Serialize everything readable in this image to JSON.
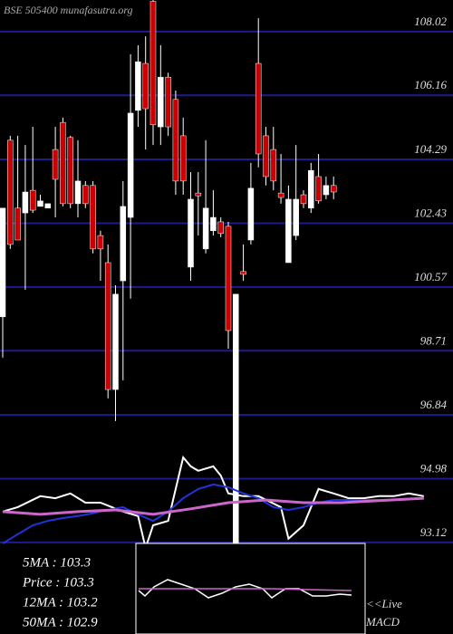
{
  "chart_data": {
    "type": "candlestick",
    "title": "BSE 505400 munafasutra.org",
    "ylim": [
      90.45,
      108.94
    ],
    "yticks": [
      108.02,
      106.16,
      104.29,
      102.43,
      100.57,
      98.71,
      96.84,
      94.98,
      93.12
    ],
    "grid": true,
    "up_color": "#ffffff",
    "down_color": "#cc0000",
    "grid_color": "#1c1c8c",
    "open": [
      99.7,
      104.85,
      102.87,
      102.73,
      103.39,
      102.92,
      102.87,
      104.58,
      105.37,
      104.93,
      103.0,
      103.53,
      103.53,
      102.07,
      101.28,
      97.58,
      100.75,
      102.6,
      105.72,
      107.09,
      108.9,
      105.24,
      106.69,
      106.04,
      104.98,
      101.15,
      103.31,
      101.68,
      102.21,
      102.47,
      102.34,
      93.09,
      101.02,
      101.94,
      107.09,
      104.98,
      104.58,
      103.31,
      101.28,
      102.07,
      103.26,
      102.87,
      103.79,
      103.26,
      103.53
    ],
    "high": [
      102.87,
      104.98,
      104.98,
      104.71,
      105.24,
      103.26,
      103.0,
      105.24,
      105.51,
      104.98,
      104.85,
      103.66,
      103.66,
      102.21,
      101.81,
      100.62,
      103.66,
      107.36,
      107.62,
      107.88,
      108.94,
      107.62,
      106.82,
      106.3,
      105.51,
      103.92,
      103.92,
      104.85,
      103.39,
      102.6,
      102.47,
      100.36,
      101.81,
      104.19,
      108.41,
      105.24,
      105.24,
      104.45,
      103.53,
      104.71,
      103.39,
      104.19,
      104.45,
      103.79,
      103.79
    ],
    "low": [
      98.51,
      101.68,
      101.94,
      100.49,
      102.73,
      102.92,
      102.87,
      102.6,
      102.92,
      102.87,
      102.6,
      102.87,
      101.55,
      100.75,
      97.32,
      96.66,
      97.85,
      100.23,
      105.24,
      104.58,
      104.71,
      104.71,
      104.98,
      103.26,
      103.26,
      100.75,
      102.07,
      101.55,
      102.07,
      102.02,
      98.77,
      93.09,
      100.75,
      101.81,
      104.06,
      103.53,
      103.39,
      103.0,
      101.28,
      101.94,
      102.87,
      102.73,
      103.0,
      103.13,
      103.13
    ],
    "close": [
      102.87,
      101.81,
      101.94,
      103.34,
      102.81,
      103.08,
      103.0,
      103.71,
      103.0,
      103.0,
      103.66,
      103.0,
      101.68,
      101.68,
      97.58,
      100.36,
      102.92,
      105.64,
      107.14,
      105.77,
      105.3,
      106.69,
      105.24,
      103.66,
      103.66,
      103.13,
      103.23,
      102.87,
      102.6,
      102.13,
      99.3,
      100.36,
      100.94,
      103.45,
      104.45,
      103.79,
      103.66,
      103.18,
      103.13,
      103.13,
      103.0,
      103.97,
      103.08,
      103.53,
      103.34
    ],
    "lines": [
      {
        "color": "#ffffff",
        "width": 2,
        "x": [
          0,
          2,
          5,
          7,
          9,
          11,
          13,
          16,
          18,
          19,
          20,
          22,
          23,
          24,
          25,
          26,
          28,
          29,
          30,
          32,
          34,
          37,
          38,
          40,
          42,
          44,
          46,
          48,
          50,
          52,
          54,
          56
        ],
        "values": [
          94.02,
          94.15,
          94.47,
          94.41,
          94.55,
          94.28,
          94.28,
          94.02,
          93.89,
          92.96,
          93.62,
          93.75,
          94.68,
          95.6,
          95.34,
          95.21,
          95.34,
          95.07,
          94.55,
          94.47,
          94.47,
          94.15,
          93.23,
          93.62,
          94.68,
          94.55,
          94.41,
          94.41,
          94.47,
          94.47,
          94.55,
          94.47
        ]
      },
      {
        "color": "#2233dd",
        "width": 2,
        "x": [
          0,
          2,
          4,
          6,
          8,
          10,
          12,
          14,
          16,
          18,
          20,
          22,
          24,
          26,
          28,
          30,
          32,
          34,
          36,
          38,
          40,
          42,
          44,
          48,
          52,
          56
        ],
        "values": [
          93.09,
          93.36,
          93.62,
          93.75,
          93.83,
          93.89,
          93.97,
          94.07,
          94.15,
          93.94,
          93.75,
          94.02,
          94.41,
          94.68,
          94.81,
          94.73,
          94.55,
          94.41,
          94.15,
          94.07,
          94.15,
          94.28,
          94.36,
          94.36,
          94.36,
          94.41
        ]
      },
      {
        "color": "#cc66cc",
        "width": 3,
        "x": [
          0,
          5,
          10,
          15,
          20,
          25,
          30,
          35,
          40,
          45,
          50,
          56
        ],
        "values": [
          94.02,
          93.94,
          94.02,
          94.07,
          93.94,
          94.1,
          94.28,
          94.36,
          94.28,
          94.28,
          94.34,
          94.41
        ]
      }
    ],
    "info": [
      "5MA : 103.3",
      "Price  : 103.3",
      "12MA : 103.2",
      "50MA : 102.9"
    ],
    "live_label": "<<Live",
    "macd_label": "MACD"
  }
}
